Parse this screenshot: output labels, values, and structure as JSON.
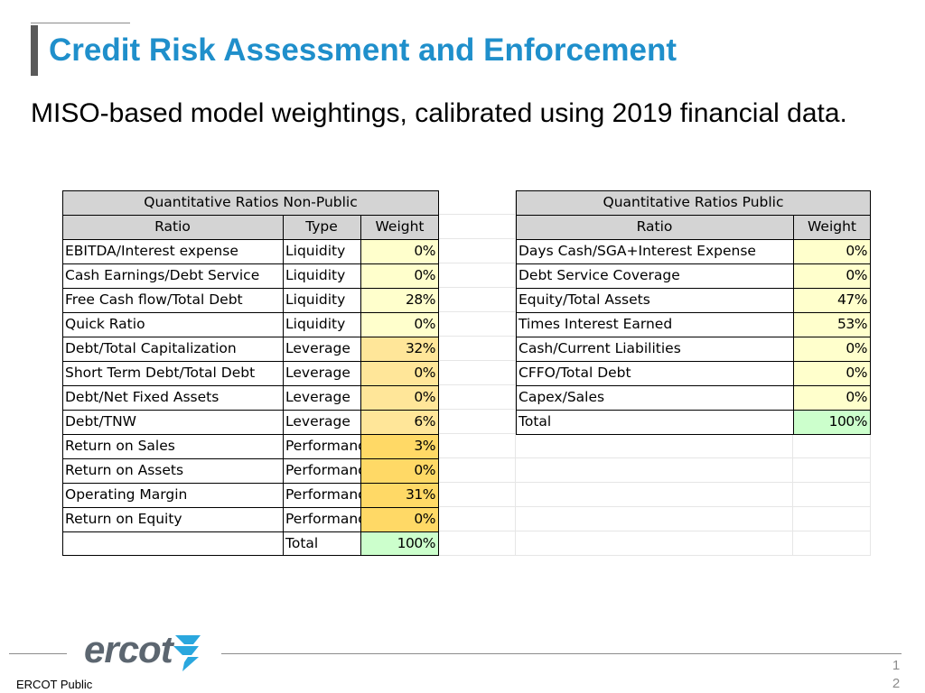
{
  "slide": {
    "title": "Credit Risk Assessment and Enforcement",
    "subtitle": "MISO-based model weightings, calibrated using 2019 financial data.",
    "footer": "ERCOT Public",
    "logo_text": "ercot",
    "page_number_top": "1",
    "page_number_bottom": "2"
  },
  "colors": {
    "title": "#1f8fcb",
    "header_fill": "#d4d4d4",
    "total_fill": "#ccffcc"
  },
  "nonpublic_table": {
    "title": "Quantitative Ratios Non-Public",
    "headers": {
      "ratio": "Ratio",
      "type": "Type",
      "weight": "Weight"
    },
    "rows": [
      {
        "ratio": "EBITDA/Interest expense",
        "type": "Liquidity",
        "weight": "0%",
        "fill": "#ffffcc"
      },
      {
        "ratio": "Cash Earnings/Debt Service",
        "type": "Liquidity",
        "weight": "0%",
        "fill": "#ffffcc"
      },
      {
        "ratio": "Free Cash flow/Total Debt",
        "type": "Liquidity",
        "weight": "28%",
        "fill": "#ffffcc"
      },
      {
        "ratio": "Quick Ratio",
        "type": "Liquidity",
        "weight": "0%",
        "fill": "#ffffcc"
      },
      {
        "ratio": "Debt/Total Capitalization",
        "type": "Leverage",
        "weight": "32%",
        "fill": "#ffe699"
      },
      {
        "ratio": "Short Term Debt/Total Debt",
        "type": "Leverage",
        "weight": "0%",
        "fill": "#ffe699"
      },
      {
        "ratio": "Debt/Net Fixed Assets",
        "type": "Leverage",
        "weight": "0%",
        "fill": "#ffe699"
      },
      {
        "ratio": "Debt/TNW",
        "type": "Leverage",
        "weight": "6%",
        "fill": "#ffe699"
      },
      {
        "ratio": "Return on Sales",
        "type": "Performance",
        "weight": "3%",
        "fill": "#ffd966"
      },
      {
        "ratio": "Return on Assets",
        "type": "Performance",
        "weight": "0%",
        "fill": "#ffd966"
      },
      {
        "ratio": "Operating Margin",
        "type": "Performance",
        "weight": "31%",
        "fill": "#ffd966"
      },
      {
        "ratio": "Return on Equity",
        "type": "Performance",
        "weight": "0%",
        "fill": "#ffd966"
      }
    ],
    "total": {
      "label": "Total",
      "weight": "100%"
    }
  },
  "public_table": {
    "title": "Quantitative Ratios Public",
    "headers": {
      "ratio": "Ratio",
      "weight": "Weight"
    },
    "rows": [
      {
        "ratio": "Days Cash/SGA+Interest Expense",
        "weight": "0%"
      },
      {
        "ratio": "Debt Service Coverage",
        "weight": "0%"
      },
      {
        "ratio": "Equity/Total Assets",
        "weight": "47%"
      },
      {
        "ratio": "Times Interest Earned",
        "weight": "53%"
      },
      {
        "ratio": "Cash/Current Liabilities",
        "weight": "0%"
      },
      {
        "ratio": "CFFO/Total Debt",
        "weight": "0%"
      },
      {
        "ratio": "Capex/Sales",
        "weight": "0%"
      }
    ],
    "row_fill": "#ffffcc",
    "total": {
      "label": "Total",
      "weight": "100%"
    }
  }
}
